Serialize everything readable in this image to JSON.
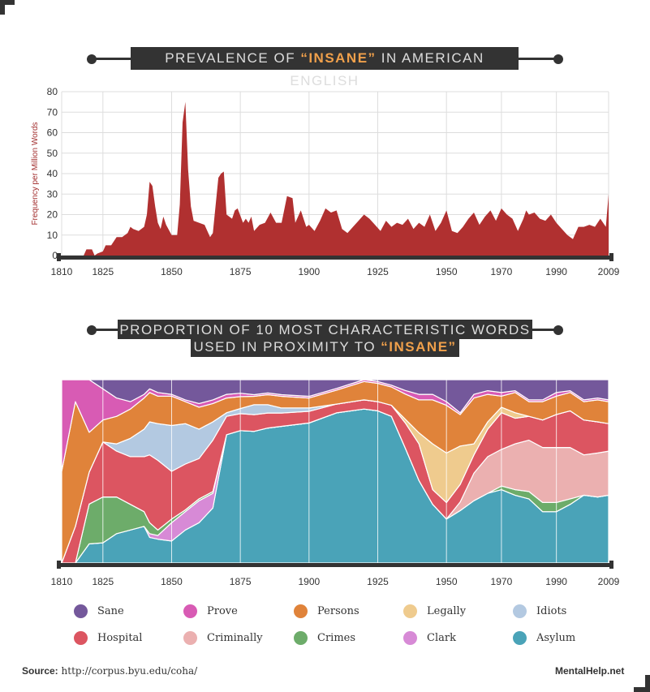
{
  "titles": {
    "chart1_pre": "PREVALENCE OF ",
    "chart1_hl": "“INSANE”",
    "chart1_post": " IN AMERICAN ENGLISH",
    "chart2_line1": "PROPORTION OF 10 MOST CHARACTERISTIC WORDS",
    "chart2_line2_pre": "USED IN PROXIMITY TO ",
    "chart2_line2_hl": "“INSANE”"
  },
  "footer": {
    "source_label": "Source:",
    "source_url": "http://corpus.byu.edu/coha/",
    "brand": "MentalHelp.net"
  },
  "colors": {
    "frame": "#333333",
    "highlight": "#f0a04b",
    "area1": "#b03030",
    "grid": "#dddddd",
    "ylabel": "#a33030"
  },
  "chart_data": [
    {
      "type": "area",
      "title": "PREVALENCE OF “INSANE” IN AMERICAN ENGLISH",
      "ylabel": "Frequency per Million Words",
      "xlabel": "",
      "ylim": [
        0,
        80
      ],
      "xlim": [
        1810,
        2009
      ],
      "yticks": [
        0,
        10,
        20,
        30,
        40,
        50,
        60,
        70,
        80
      ],
      "xticks": [
        "1810",
        "1825",
        "1850",
        "1875",
        "1900",
        "1925",
        "1950",
        "1970",
        "1990",
        "2009"
      ],
      "grid": true,
      "series": [
        {
          "x": [
            1810,
            1818,
            1819,
            1821,
            1822,
            1823,
            1825,
            1826,
            1828,
            1830,
            1832,
            1834,
            1835,
            1836,
            1838,
            1840,
            1841,
            1842,
            1843,
            1844,
            1845,
            1846,
            1847,
            1848,
            1850,
            1852,
            1853,
            1854,
            1855,
            1856,
            1857,
            1858,
            1860,
            1862,
            1863,
            1864,
            1865,
            1867,
            1868,
            1869,
            1870,
            1872,
            1873,
            1874,
            1876,
            1877,
            1878,
            1879,
            1880,
            1882,
            1884,
            1886,
            1888,
            1890,
            1892,
            1894,
            1895,
            1897,
            1899,
            1900,
            1902,
            1904,
            1906,
            1908,
            1910,
            1912,
            1914,
            1916,
            1918,
            1920,
            1922,
            1924,
            1926,
            1928,
            1930,
            1932,
            1934,
            1936,
            1938,
            1940,
            1942,
            1944,
            1946,
            1948,
            1950,
            1952,
            1954,
            1956,
            1958,
            1960,
            1962,
            1964,
            1966,
            1968,
            1970,
            1972,
            1974,
            1976,
            1978,
            1979,
            1980,
            1982,
            1984,
            1986,
            1988,
            1990,
            1992,
            1994,
            1996,
            1998,
            2000,
            2002,
            2004,
            2006,
            2008,
            2009
          ],
          "values": [
            0,
            0,
            3,
            3,
            0,
            1,
            2,
            5,
            5,
            9,
            9,
            11,
            14,
            13,
            12,
            14,
            20,
            36,
            34,
            24,
            16,
            13,
            19,
            15,
            10,
            10,
            25,
            65,
            75,
            42,
            24,
            17,
            16,
            15,
            12,
            9,
            11,
            38,
            40,
            41,
            20,
            18,
            22,
            23,
            16,
            18,
            16,
            19,
            12,
            15,
            16,
            21,
            16,
            16,
            29,
            28,
            16,
            22,
            14,
            15,
            12,
            17,
            23,
            21,
            22,
            13,
            11,
            14,
            17,
            20,
            18,
            15,
            12,
            17,
            14,
            16,
            15,
            18,
            13,
            16,
            14,
            20,
            12,
            16,
            22,
            12,
            11,
            14,
            18,
            21,
            15,
            19,
            22,
            17,
            23,
            20,
            18,
            12,
            18,
            22,
            20,
            21,
            18,
            17,
            20,
            16,
            13,
            10,
            8,
            14,
            14,
            15,
            14,
            18,
            14,
            30
          ]
        }
      ]
    },
    {
      "type": "area",
      "title": "PROPORTION OF 10 MOST CHARACTERISTIC WORDS USED IN PROXIMITY TO “INSANE”",
      "stacked": true,
      "normalized": true,
      "xlim": [
        1810,
        2009
      ],
      "ylim": [
        0,
        1
      ],
      "xticks": [
        "1810",
        "1825",
        "1850",
        "1875",
        "1900",
        "1925",
        "1950",
        "1970",
        "1990",
        "2009"
      ],
      "grid": true,
      "legend_position": "bottom",
      "x": [
        1810,
        1815,
        1820,
        1825,
        1830,
        1835,
        1840,
        1842,
        1845,
        1850,
        1855,
        1860,
        1865,
        1870,
        1875,
        1880,
        1885,
        1890,
        1900,
        1910,
        1920,
        1925,
        1930,
        1935,
        1940,
        1945,
        1950,
        1955,
        1960,
        1965,
        1970,
        1975,
        1980,
        1985,
        1990,
        1995,
        2000,
        2005,
        2009
      ],
      "series": [
        {
          "name": "Asylum",
          "color": "#4aa3b8",
          "values": [
            0,
            0,
            0.12,
            0.11,
            0.16,
            0.18,
            0.2,
            0.14,
            0.13,
            0.12,
            0.18,
            0.22,
            0.3,
            0.7,
            0.78,
            0.79,
            0.81,
            0.82,
            0.84,
            0.86,
            0.84,
            0.83,
            0.8,
            0.64,
            0.45,
            0.32,
            0.24,
            0.3,
            0.34,
            0.38,
            0.4,
            0.37,
            0.35,
            0.28,
            0.28,
            0.32,
            0.37,
            0.36,
            0.37
          ]
        },
        {
          "name": "Clark",
          "color": "#d78ad6",
          "values": [
            0,
            0,
            0,
            0,
            0,
            0,
            0,
            0.02,
            0.02,
            0.1,
            0.1,
            0.12,
            0.08,
            0,
            0,
            0,
            0,
            0,
            0,
            0,
            0,
            0,
            0,
            0,
            0,
            0,
            0,
            0,
            0,
            0,
            0,
            0,
            0,
            0,
            0,
            0,
            0,
            0,
            0
          ]
        },
        {
          "name": "Crimes",
          "color": "#6dac6a",
          "values": [
            0,
            0,
            0.25,
            0.25,
            0.2,
            0.14,
            0.08,
            0.06,
            0.03,
            0.02,
            0.01,
            0.01,
            0.01,
            0,
            0,
            0,
            0,
            0,
            0,
            0,
            0,
            0,
            0,
            0,
            0,
            0,
            0,
            0,
            0,
            0,
            0.02,
            0.03,
            0.04,
            0.05,
            0.05,
            0.03,
            0,
            0,
            0
          ]
        },
        {
          "name": "Criminally",
          "color": "#ebb0b0",
          "values": [
            0,
            0,
            0,
            0,
            0,
            0,
            0,
            0,
            0,
            0,
            0,
            0,
            0,
            0,
            0,
            0,
            0,
            0,
            0,
            0,
            0,
            0,
            0,
            0,
            0,
            0,
            0,
            0.05,
            0.15,
            0.2,
            0.2,
            0.25,
            0.28,
            0.3,
            0.3,
            0.28,
            0.22,
            0.24,
            0.24
          ]
        },
        {
          "name": "Hospital",
          "color": "#dc5561",
          "values": [
            0,
            0.2,
            0.2,
            0.3,
            0.25,
            0.26,
            0.3,
            0.37,
            0.38,
            0.26,
            0.25,
            0.22,
            0.28,
            0.1,
            0.1,
            0.1,
            0.09,
            0.08,
            0.07,
            0.05,
            0.05,
            0.05,
            0.06,
            0.14,
            0.2,
            0.08,
            0.09,
            0.1,
            0.1,
            0.15,
            0.2,
            0.14,
            0.13,
            0.15,
            0.18,
            0.2,
            0.19,
            0.17,
            0.15
          ]
        },
        {
          "name": "Idiots",
          "color": "#b3c9e1",
          "values": [
            0,
            0,
            0,
            0,
            0.04,
            0.1,
            0.15,
            0.18,
            0.2,
            0.25,
            0.22,
            0.16,
            0.1,
            0.02,
            0.03,
            0.06,
            0.05,
            0.03,
            0.02,
            0,
            0,
            0,
            0,
            0,
            0,
            0,
            0,
            0,
            0,
            0,
            0,
            0,
            0,
            0,
            0,
            0,
            0,
            0,
            0
          ]
        },
        {
          "name": "Legally",
          "color": "#efcb8e",
          "values": [
            0,
            0,
            0,
            0,
            0,
            0,
            0,
            0,
            0,
            0,
            0,
            0,
            0,
            0,
            0,
            0,
            0,
            0,
            0,
            0,
            0,
            0,
            0,
            0.02,
            0.06,
            0.25,
            0.27,
            0.22,
            0.06,
            0.04,
            0.03,
            0.03,
            0,
            0,
            0,
            0,
            0,
            0,
            0
          ]
        },
        {
          "name": "Persons",
          "color": "#e0833a",
          "values": [
            0.5,
            0.68,
            0.25,
            0.12,
            0.15,
            0.16,
            0.17,
            0.16,
            0.15,
            0.16,
            0.12,
            0.12,
            0.1,
            0.08,
            0.07,
            0.05,
            0.06,
            0.07,
            0.06,
            0.08,
            0.1,
            0.1,
            0.1,
            0.14,
            0.18,
            0.24,
            0.26,
            0.18,
            0.25,
            0.15,
            0.06,
            0.11,
            0.08,
            0.1,
            0.1,
            0.1,
            0.1,
            0.12,
            0.12
          ]
        },
        {
          "name": "Prove",
          "color": "#d85bb4",
          "values": [
            0.5,
            0.12,
            0.33,
            0.17,
            0.1,
            0.04,
            0.02,
            0.02,
            0.02,
            0.01,
            0.01,
            0.02,
            0.02,
            0.02,
            0.02,
            0.01,
            0.01,
            0.01,
            0.01,
            0.01,
            0.01,
            0.01,
            0.01,
            0.02,
            0.03,
            0.03,
            0.02,
            0.01,
            0.02,
            0.02,
            0.02,
            0.01,
            0.01,
            0.01,
            0.02,
            0.01,
            0.01,
            0.01,
            0.01
          ]
        },
        {
          "name": "Sane",
          "color": "#74589b",
          "values": [
            0,
            0,
            0,
            0.05,
            0.1,
            0.12,
            0.08,
            0.05,
            0.07,
            0.08,
            0.11,
            0.13,
            0.11,
            0.08,
            0.08,
            0.09,
            0.08,
            0.09,
            0.1,
            0.05,
            0,
            0.01,
            0.03,
            0.06,
            0.08,
            0.08,
            0.12,
            0.19,
            0.08,
            0.06,
            0.07,
            0.06,
            0.11,
            0.11,
            0.07,
            0.06,
            0.11,
            0.1,
            0.11
          ]
        }
      ],
      "legend_order": [
        "Sane",
        "Prove",
        "Persons",
        "Legally",
        "Idiots",
        "Hospital",
        "Criminally",
        "Crimes",
        "Clark",
        "Asylum"
      ]
    }
  ]
}
